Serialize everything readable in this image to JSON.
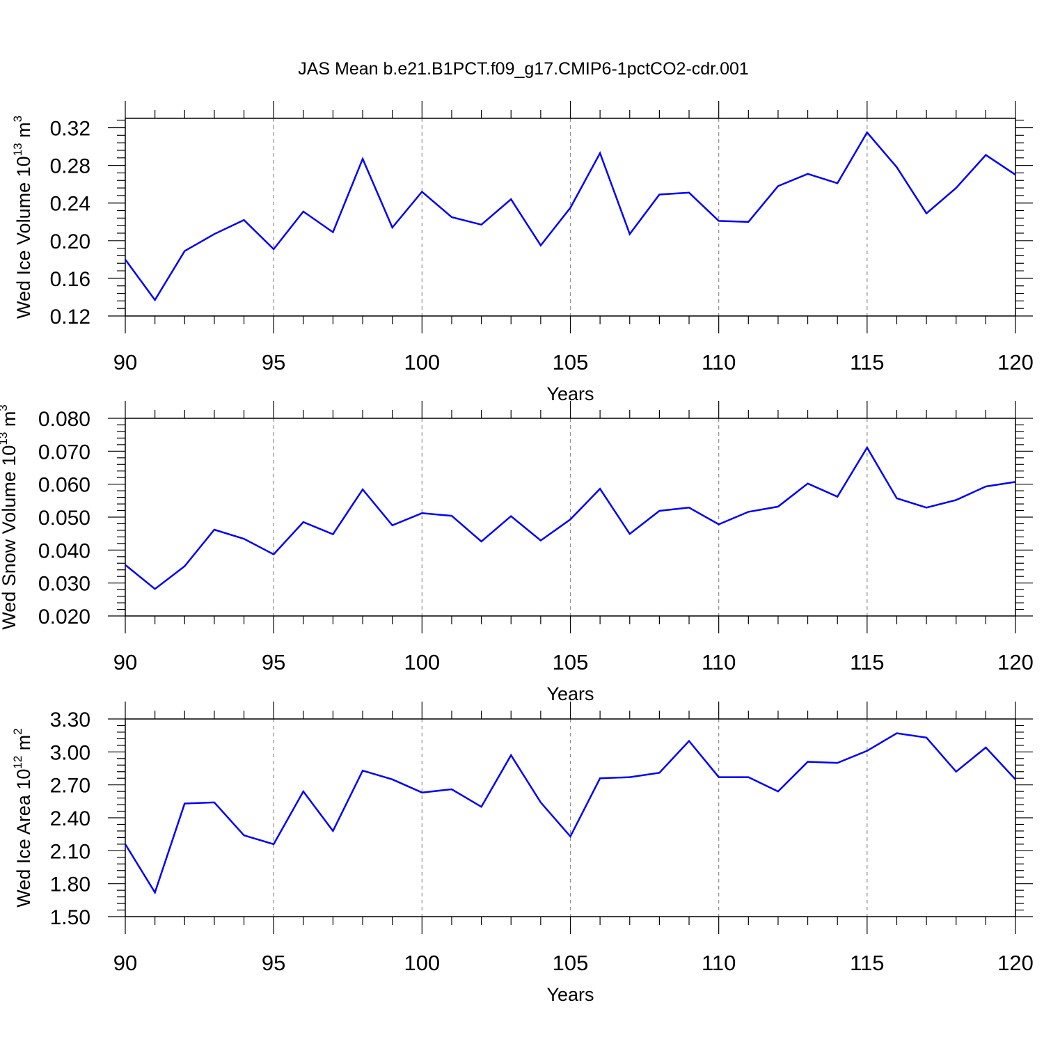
{
  "title": "JAS Mean b.e21.B1PCT.f09_g17.CMIP6-1pctCO2-cdr.001",
  "colors": {
    "line": "#0000ff",
    "axis": "#000000",
    "grid": "#8c8c8c"
  },
  "chart_data": [
    {
      "type": "line",
      "xlabel": "Years",
      "ylabel_main": "Wed Ice Volume 10",
      "ylabel_exp": "13",
      "ylabel_unit": " m",
      "ylabel_unit_exp": "3",
      "xlim": [
        90,
        120
      ],
      "ylim": [
        0.12,
        0.33
      ],
      "xticks": [
        90,
        95,
        100,
        105,
        110,
        115,
        120
      ],
      "xtick_labels": [
        "90",
        "95",
        "100",
        "105",
        "110",
        "115",
        "120"
      ],
      "yticks": [
        0.12,
        0.16,
        0.2,
        0.24,
        0.28,
        0.32
      ],
      "ytick_labels": [
        "0.12",
        "0.16",
        "0.20",
        "0.24",
        "0.28",
        "0.32"
      ],
      "grid": "vertical dashed at major x ticks",
      "x": [
        90,
        91,
        92,
        93,
        94,
        95,
        96,
        97,
        98,
        99,
        100,
        101,
        102,
        103,
        104,
        105,
        106,
        107,
        108,
        109,
        110,
        111,
        112,
        113,
        114,
        115,
        116,
        117,
        118,
        119,
        120
      ],
      "y": [
        0.18,
        0.137,
        0.189,
        0.207,
        0.222,
        0.191,
        0.231,
        0.209,
        0.287,
        0.214,
        0.252,
        0.225,
        0.217,
        0.244,
        0.195,
        0.235,
        0.293,
        0.207,
        0.249,
        0.251,
        0.221,
        0.22,
        0.258,
        0.271,
        0.261,
        0.315,
        0.278,
        0.229,
        0.256,
        0.291,
        0.27
      ]
    },
    {
      "type": "line",
      "xlabel": "Years",
      "ylabel_main": "Wed Snow Volume 10",
      "ylabel_exp": "13",
      "ylabel_unit": " m",
      "ylabel_unit_exp": "3",
      "xlim": [
        90,
        120
      ],
      "ylim": [
        0.02,
        0.08
      ],
      "xticks": [
        90,
        95,
        100,
        105,
        110,
        115,
        120
      ],
      "xtick_labels": [
        "90",
        "95",
        "100",
        "105",
        "110",
        "115",
        "120"
      ],
      "yticks": [
        0.02,
        0.03,
        0.04,
        0.05,
        0.06,
        0.07,
        0.08
      ],
      "ytick_labels": [
        "0.020",
        "0.030",
        "0.040",
        "0.050",
        "0.060",
        "0.070",
        "0.080"
      ],
      "grid": "vertical dashed at major x ticks",
      "x": [
        90,
        91,
        92,
        93,
        94,
        95,
        96,
        97,
        98,
        99,
        100,
        101,
        102,
        103,
        104,
        105,
        106,
        107,
        108,
        109,
        110,
        111,
        112,
        113,
        114,
        115,
        116,
        117,
        118,
        119,
        120
      ],
      "y": [
        0.0355,
        0.0282,
        0.0351,
        0.0462,
        0.0434,
        0.0387,
        0.0485,
        0.0448,
        0.0584,
        0.0475,
        0.0512,
        0.0504,
        0.0426,
        0.0503,
        0.0429,
        0.0493,
        0.0586,
        0.0449,
        0.0519,
        0.0529,
        0.0478,
        0.0516,
        0.0532,
        0.0602,
        0.0562,
        0.0711,
        0.0557,
        0.0529,
        0.0552,
        0.0593,
        0.0607
      ]
    },
    {
      "type": "line",
      "xlabel": "Years",
      "ylabel_main": "Wed Ice Area 10",
      "ylabel_exp": "12",
      "ylabel_unit": " m",
      "ylabel_unit_exp": "2",
      "xlim": [
        90,
        120
      ],
      "ylim": [
        1.5,
        3.3
      ],
      "xticks": [
        90,
        95,
        100,
        105,
        110,
        115,
        120
      ],
      "xtick_labels": [
        "90",
        "95",
        "100",
        "105",
        "110",
        "115",
        "120"
      ],
      "yticks": [
        1.5,
        1.8,
        2.1,
        2.4,
        2.7,
        3.0,
        3.3
      ],
      "ytick_labels": [
        "1.50",
        "1.80",
        "2.10",
        "2.40",
        "2.70",
        "3.00",
        "3.30"
      ],
      "grid": "vertical dashed at major x ticks",
      "x": [
        90,
        91,
        92,
        93,
        94,
        95,
        96,
        97,
        98,
        99,
        100,
        101,
        102,
        103,
        104,
        105,
        106,
        107,
        108,
        109,
        110,
        111,
        112,
        113,
        114,
        115,
        116,
        117,
        118,
        119,
        120
      ],
      "y": [
        2.16,
        1.72,
        2.53,
        2.54,
        2.24,
        2.16,
        2.64,
        2.28,
        2.83,
        2.75,
        2.63,
        2.66,
        2.5,
        2.97,
        2.54,
        2.23,
        2.76,
        2.77,
        2.81,
        3.1,
        2.77,
        2.77,
        2.64,
        2.91,
        2.9,
        3.01,
        3.17,
        3.13,
        2.82,
        3.04,
        2.75
      ]
    }
  ]
}
